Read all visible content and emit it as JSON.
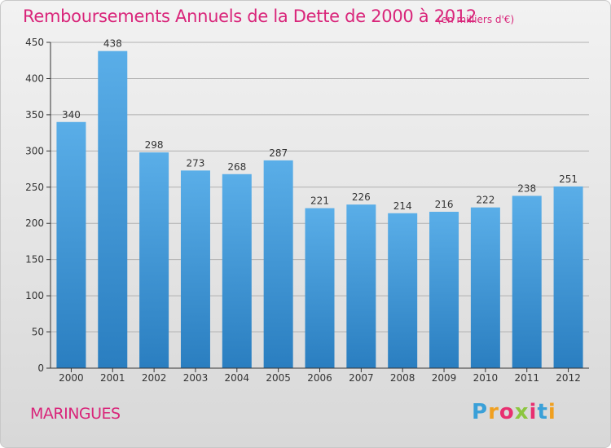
{
  "title": "Remboursements Annuels de la Dette de 2000 à 2012",
  "subtitle": "(en milliers d'€)",
  "commune": "MARINGUES",
  "brand": {
    "text": "Proxiti",
    "letter_colors": [
      "#3aa0d8",
      "#f0a020",
      "#e83070",
      "#8cc63f",
      "#e83070",
      "#3aa0d8",
      "#f0a020"
    ]
  },
  "colors": {
    "bar_light": "#5aaee8",
    "bar_dark": "#2a7ec0",
    "text": "#d9257a",
    "axis": "#333333"
  },
  "chart_data": {
    "type": "bar",
    "categories": [
      "2000",
      "2001",
      "2002",
      "2003",
      "2004",
      "2005",
      "2006",
      "2007",
      "2008",
      "2009",
      "2010",
      "2011",
      "2012"
    ],
    "values": [
      340,
      438,
      298,
      273,
      268,
      287,
      221,
      226,
      214,
      216,
      222,
      238,
      251
    ],
    "ylim": [
      0,
      450
    ],
    "yticks": [
      0,
      50,
      100,
      150,
      200,
      250,
      300,
      350,
      400,
      450
    ],
    "grid": true,
    "xlabel": "",
    "ylabel": ""
  }
}
